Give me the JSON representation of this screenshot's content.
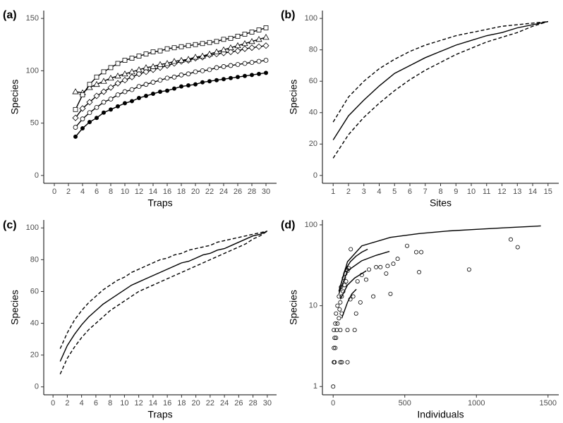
{
  "chart_data": [
    {
      "type": "line",
      "panel_label": "(a)",
      "x_label": "Traps",
      "y_label": "Species",
      "x": [
        3,
        4,
        5,
        6,
        7,
        8,
        9,
        10,
        11,
        12,
        13,
        14,
        15,
        16,
        17,
        18,
        19,
        20,
        21,
        22,
        23,
        24,
        25,
        26,
        27,
        28,
        29,
        30
      ],
      "xlim": [
        -1.5,
        31.5
      ],
      "xticks": [
        0,
        2,
        4,
        6,
        8,
        10,
        12,
        14,
        16,
        18,
        20,
        22,
        24,
        26,
        28,
        30
      ],
      "ylim": [
        -7.5,
        157.5
      ],
      "yticks": [
        0,
        50,
        100,
        150
      ],
      "series": [
        {
          "marker": "filled-circle",
          "color": "#000000",
          "dash": false,
          "values": [
            37,
            45,
            51,
            55,
            60,
            63,
            66,
            69,
            71,
            74,
            76,
            78,
            80,
            81,
            83,
            85,
            86,
            87,
            89,
            90,
            91,
            92,
            93,
            94,
            95,
            96,
            97,
            98
          ]
        },
        {
          "marker": "circle",
          "color": "#000000",
          "dash": false,
          "values": [
            46,
            54,
            60,
            65,
            70,
            73,
            77,
            80,
            82,
            85,
            87,
            89,
            91,
            93,
            94,
            96,
            97,
            99,
            100,
            101,
            103,
            104,
            105,
            106,
            107,
            108,
            109,
            110
          ]
        },
        {
          "marker": "diamond",
          "color": "#000000",
          "dash": false,
          "values": [
            55,
            64,
            70,
            76,
            80,
            84,
            88,
            91,
            94,
            97,
            99,
            101,
            103,
            105,
            107,
            109,
            110,
            112,
            113,
            115,
            116,
            117,
            118,
            119,
            121,
            122,
            123,
            124
          ]
        },
        {
          "marker": "triangle",
          "color": "#000000",
          "dash": false,
          "values": [
            80,
            79,
            84,
            87,
            90,
            93,
            95,
            97,
            99,
            101,
            103,
            104,
            106,
            107,
            109,
            110,
            111,
            113,
            114,
            116,
            118,
            120,
            122,
            124,
            126,
            128,
            130,
            132
          ]
        },
        {
          "marker": "square",
          "color": "#000000",
          "dash": false,
          "values": [
            63,
            77,
            87,
            94,
            99,
            103,
            107,
            110,
            112,
            114,
            116,
            118,
            119,
            121,
            122,
            123,
            124,
            125,
            126,
            127,
            128,
            130,
            131,
            133,
            135,
            137,
            139,
            141
          ]
        }
      ]
    },
    {
      "type": "line",
      "panel_label": "(b)",
      "x_label": "Sites",
      "y_label": "Species",
      "x": [
        1,
        2,
        3,
        4,
        5,
        6,
        7,
        8,
        9,
        10,
        11,
        12,
        13,
        14,
        15
      ],
      "xlim": [
        0.3,
        15.7
      ],
      "xticks": [
        1,
        2,
        3,
        4,
        5,
        6,
        7,
        8,
        9,
        10,
        11,
        12,
        13,
        14,
        15
      ],
      "ylim": [
        -5,
        105
      ],
      "yticks": [
        0,
        20,
        40,
        60,
        80,
        100
      ],
      "series": [
        {
          "color": "#000000",
          "dash": false,
          "values": [
            22.6,
            38,
            48,
            57,
            65,
            70,
            75,
            79,
            83,
            86,
            89,
            91,
            94,
            96,
            98
          ]
        },
        {
          "color": "#000000",
          "dash": true,
          "values": [
            34,
            50,
            60,
            68,
            74,
            79,
            83,
            86,
            89,
            91,
            93,
            95,
            96,
            97,
            98
          ]
        },
        {
          "color": "#000000",
          "dash": true,
          "values": [
            11,
            26,
            37,
            46,
            54,
            61,
            67,
            72,
            77,
            81,
            85,
            88,
            91,
            95,
            98
          ]
        }
      ]
    },
    {
      "type": "line",
      "panel_label": "(c)",
      "x_label": "Traps",
      "y_label": "Species",
      "x": [
        1,
        2,
        3,
        4,
        5,
        6,
        7,
        8,
        9,
        10,
        11,
        12,
        13,
        14,
        15,
        16,
        17,
        18,
        19,
        20,
        21,
        22,
        23,
        24,
        25,
        26,
        27,
        28,
        29,
        30
      ],
      "xlim": [
        -1.3,
        31.3
      ],
      "xticks": [
        0,
        2,
        4,
        6,
        8,
        10,
        12,
        14,
        16,
        18,
        20,
        22,
        24,
        26,
        28,
        30
      ],
      "ylim": [
        -5,
        105
      ],
      "yticks": [
        0,
        20,
        40,
        60,
        80,
        100
      ],
      "series": [
        {
          "color": "#000000",
          "dash": false,
          "values": [
            16,
            26,
            33,
            39,
            44,
            48,
            52,
            55,
            58,
            61,
            64,
            66,
            68,
            70,
            72,
            74,
            76,
            78,
            79,
            81,
            83,
            84,
            86,
            87,
            89,
            91,
            93,
            95,
            96,
            98
          ]
        },
        {
          "color": "#000000",
          "dash": true,
          "values": [
            24,
            34,
            42,
            48,
            53,
            57,
            61,
            64,
            67,
            69,
            72,
            74,
            76,
            78,
            80,
            81,
            83,
            84,
            86,
            87,
            88,
            89,
            91,
            92,
            93,
            94,
            95,
            96,
            97,
            98
          ]
        },
        {
          "color": "#000000",
          "dash": true,
          "values": [
            8,
            18,
            25,
            31,
            36,
            40,
            44,
            48,
            51,
            54,
            57,
            60,
            62,
            64,
            66,
            68,
            70,
            72,
            74,
            76,
            78,
            80,
            82,
            84,
            86,
            88,
            90,
            93,
            95,
            98
          ]
        }
      ]
    },
    {
      "type": "scatter",
      "panel_label": "(d)",
      "x_label": "Individuals",
      "y_label": "Species",
      "xlim": [
        -75,
        1575
      ],
      "xticks": [
        0,
        500,
        1000,
        1500
      ],
      "ylim": [
        0.79,
        115
      ],
      "yticks": [
        1,
        10,
        100
      ],
      "y_log": true,
      "points": {
        "color": "#000000",
        "x": [
          0,
          5,
          10,
          15,
          5,
          20,
          10,
          25,
          5,
          30,
          15,
          40,
          20,
          45,
          30,
          50,
          60,
          40,
          70,
          55,
          80,
          90,
          75,
          85,
          100,
          95,
          110,
          123,
          60,
          50,
          100,
          100,
          50,
          150,
          160,
          170,
          190,
          200,
          230,
          250,
          280,
          300,
          330,
          370,
          380,
          400,
          420,
          450,
          516,
          580,
          600,
          615,
          949,
          1240,
          1288,
          140,
          120,
          60
        ],
        "y": [
          1,
          2,
          2,
          3,
          3,
          4,
          4,
          5,
          5,
          6,
          6,
          7,
          8,
          9,
          10,
          11,
          13,
          13,
          15,
          17,
          18,
          20,
          22,
          25,
          27,
          28,
          29,
          50,
          2,
          2,
          2,
          5,
          5,
          5,
          8,
          20,
          11,
          24,
          21,
          28,
          13,
          30,
          30,
          25,
          31,
          14,
          33,
          38,
          55,
          46,
          26,
          46,
          28,
          66,
          53,
          13,
          12,
          8
        ]
      },
      "curves": [
        {
          "color": "#000000",
          "x": [
            40,
            100,
            200,
            400,
            600,
            800,
            1000,
            1200,
            1450
          ],
          "values": [
            15,
            35,
            55,
            70,
            78,
            84,
            88,
            92,
            97
          ]
        },
        {
          "color": "#000000",
          "x": [
            40,
            80,
            120,
            160,
            200,
            241
          ],
          "values": [
            15,
            27,
            35,
            41,
            46,
            50
          ]
        },
        {
          "color": "#000000",
          "x": [
            40,
            100,
            200,
            300,
            393
          ],
          "values": [
            14,
            27,
            36,
            42,
            47
          ]
        },
        {
          "color": "#000000",
          "x": [
            50,
            100,
            150,
            200,
            231
          ],
          "values": [
            12,
            18,
            22,
            25,
            27
          ]
        },
        {
          "color": "#000000",
          "x": [
            60,
            100,
            130,
            162
          ],
          "values": [
            7,
            11,
            14,
            16
          ]
        }
      ]
    }
  ]
}
